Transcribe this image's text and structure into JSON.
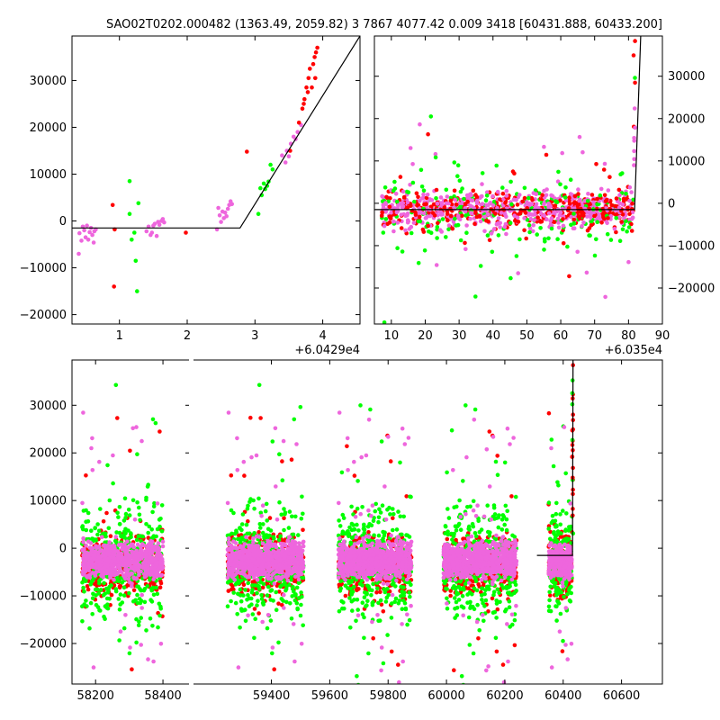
{
  "figure": {
    "title": "SAO02T0202.000482 (1363.49, 2059.82)  3 7867 4077.42 0.009 3418 [60431.888, 60433.200]"
  },
  "colors": {
    "red": "#ff0000",
    "green": "#00ff00",
    "violet": "#ee66dd",
    "model": "#000000"
  },
  "chart_data": [
    {
      "type": "scatter",
      "panel": "top-left zoom",
      "xlim": [
        60429.3,
        60433.55
      ],
      "ylim": [
        -22000,
        39500
      ],
      "x_ticks": [
        1,
        2,
        3,
        4
      ],
      "x_tick_labels": [
        "1",
        "2",
        "3",
        "4"
      ],
      "x_offset_label": "+6.0429e4",
      "y_ticks": [
        -20000,
        -10000,
        0,
        10000,
        20000,
        30000
      ],
      "y_tick_labels": [
        "−20000",
        "−10000",
        "0",
        "10000",
        "20000",
        "30000"
      ],
      "grid": false,
      "series": [
        {
          "color": "violet",
          "points": [
            [
              60429.4,
              -7000
            ],
            [
              60429.41,
              -2600
            ],
            [
              60429.44,
              -4200
            ],
            [
              60429.46,
              -1200
            ],
            [
              60429.48,
              -2000
            ],
            [
              60429.5,
              -3500
            ],
            [
              60429.52,
              -1000
            ],
            [
              60429.54,
              -4000
            ],
            [
              60429.56,
              -2400
            ],
            [
              60429.58,
              -1500
            ],
            [
              60429.6,
              -3000
            ],
            [
              60429.62,
              -4600
            ],
            [
              60429.63,
              -2200
            ],
            [
              60429.65,
              -1800
            ],
            [
              60430.4,
              -2200
            ],
            [
              60430.43,
              -1200
            ],
            [
              60430.46,
              -3000
            ],
            [
              60430.48,
              -2500
            ],
            [
              60430.5,
              -1000
            ],
            [
              60430.52,
              -600
            ],
            [
              60430.55,
              -3200
            ],
            [
              60430.57,
              -200
            ],
            [
              60430.59,
              -800
            ],
            [
              60430.62,
              0
            ],
            [
              60430.64,
              400
            ],
            [
              60430.66,
              -300
            ],
            [
              60431.44,
              -1800
            ],
            [
              60431.46,
              2800
            ],
            [
              60431.48,
              1200
            ],
            [
              60431.5,
              -200
            ],
            [
              60431.52,
              2000
            ],
            [
              60431.54,
              600
            ],
            [
              60431.56,
              1800
            ],
            [
              60431.58,
              1000
            ],
            [
              60431.6,
              2600
            ],
            [
              60431.62,
              3400
            ],
            [
              60431.64,
              4200
            ],
            [
              60431.66,
              3600
            ],
            [
              60432.4,
              14000
            ],
            [
              60432.45,
              12500
            ],
            [
              60432.47,
              15000
            ],
            [
              60432.5,
              13800
            ],
            [
              60432.53,
              16500
            ],
            [
              60432.57,
              18000
            ],
            [
              60432.6,
              17500
            ],
            [
              60432.63,
              19000
            ],
            [
              60432.68,
              20500
            ]
          ]
        },
        {
          "color": "red",
          "points": [
            [
              60429.9,
              3400
            ],
            [
              60429.93,
              -1800
            ],
            [
              60429.92,
              -14000
            ],
            [
              60430.98,
              -2500
            ],
            [
              60431.88,
              14800
            ],
            [
              60432.52,
              15000
            ],
            [
              60432.65,
              21000
            ],
            [
              60432.7,
              24000
            ],
            [
              60432.72,
              25000
            ],
            [
              60432.73,
              26000
            ],
            [
              60432.76,
              28500
            ],
            [
              60432.79,
              30500
            ],
            [
              60432.81,
              32500
            ],
            [
              60432.84,
              28500
            ],
            [
              60432.86,
              33500
            ],
            [
              60432.88,
              35000
            ],
            [
              60432.9,
              36000
            ],
            [
              60432.92,
              37000
            ],
            [
              60432.89,
              30500
            ],
            [
              60432.78,
              27500
            ]
          ]
        },
        {
          "color": "green",
          "points": [
            [
              60430.15,
              8500
            ],
            [
              60430.18,
              -4000
            ],
            [
              60430.22,
              -2500
            ],
            [
              60430.24,
              -8500
            ],
            [
              60430.26,
              -15000
            ],
            [
              60430.28,
              3800
            ],
            [
              60430.15,
              1500
            ],
            [
              60432.05,
              1500
            ],
            [
              60432.1,
              5500
            ],
            [
              60432.13,
              8000
            ],
            [
              60432.15,
              6800
            ],
            [
              60432.18,
              7500
            ],
            [
              60432.2,
              8400
            ],
            [
              60432.23,
              12000
            ],
            [
              60432.26,
              11000
            ],
            [
              60432.08,
              7000
            ]
          ]
        },
        {
          "color": "model",
          "name": "",
          "line": [
            [
              60429.3,
              -1500
            ],
            [
              60431.78,
              -1500
            ],
            [
              60433.55,
              39500
            ]
          ]
        }
      ]
    },
    {
      "type": "scatter",
      "panel": "top-right zoom",
      "xlim": [
        60355,
        60440
      ],
      "ylim": [
        -28500,
        39500
      ],
      "x_ticks": [
        10,
        20,
        30,
        40,
        50,
        60,
        70,
        80,
        90
      ],
      "x_tick_labels": [
        "10",
        "20",
        "30",
        "40",
        "50",
        "60",
        "70",
        "80",
        "90"
      ],
      "x_offset_label": "+6.035e4",
      "y_ticks": [
        -20000,
        -10000,
        0,
        10000,
        20000,
        30000
      ],
      "y_tick_labels": [
        "−20000",
        "−10000",
        "0",
        "10000",
        "20000",
        "30000"
      ],
      "grid": false,
      "series": [
        {
          "color": "model",
          "name": "",
          "line": [
            [
              60355,
              -1500
            ],
            [
              60431.8,
              -1500
            ],
            [
              60433.6,
              39500
            ]
          ]
        }
      ]
    },
    {
      "type": "scatter",
      "panel": "bottom full light curve (broken x-axis)",
      "xlim_left": [
        58130,
        58480
      ],
      "xlim_right": [
        59130,
        60740
      ],
      "ylim": [
        -28500,
        39500
      ],
      "x_ticks": [
        58200,
        58400,
        59400,
        59600,
        59800,
        60000,
        60200,
        60400,
        60600
      ],
      "x_tick_labels": [
        "58200",
        "58400",
        "59400",
        "59600",
        "59800",
        "60000",
        "60200",
        "60400",
        "60600"
      ],
      "y_ticks": [
        -20000,
        -10000,
        0,
        10000,
        20000,
        30000
      ],
      "y_tick_labels": [
        "−20000",
        "−10000",
        "0",
        "10000",
        "20000",
        "30000"
      ],
      "grid": false,
      "series": [
        {
          "color": "model",
          "name": "",
          "line": [
            [
              60310,
              -1500
            ],
            [
              60431.8,
              -1500
            ],
            [
              60433.6,
              39500
            ]
          ]
        }
      ]
    }
  ]
}
